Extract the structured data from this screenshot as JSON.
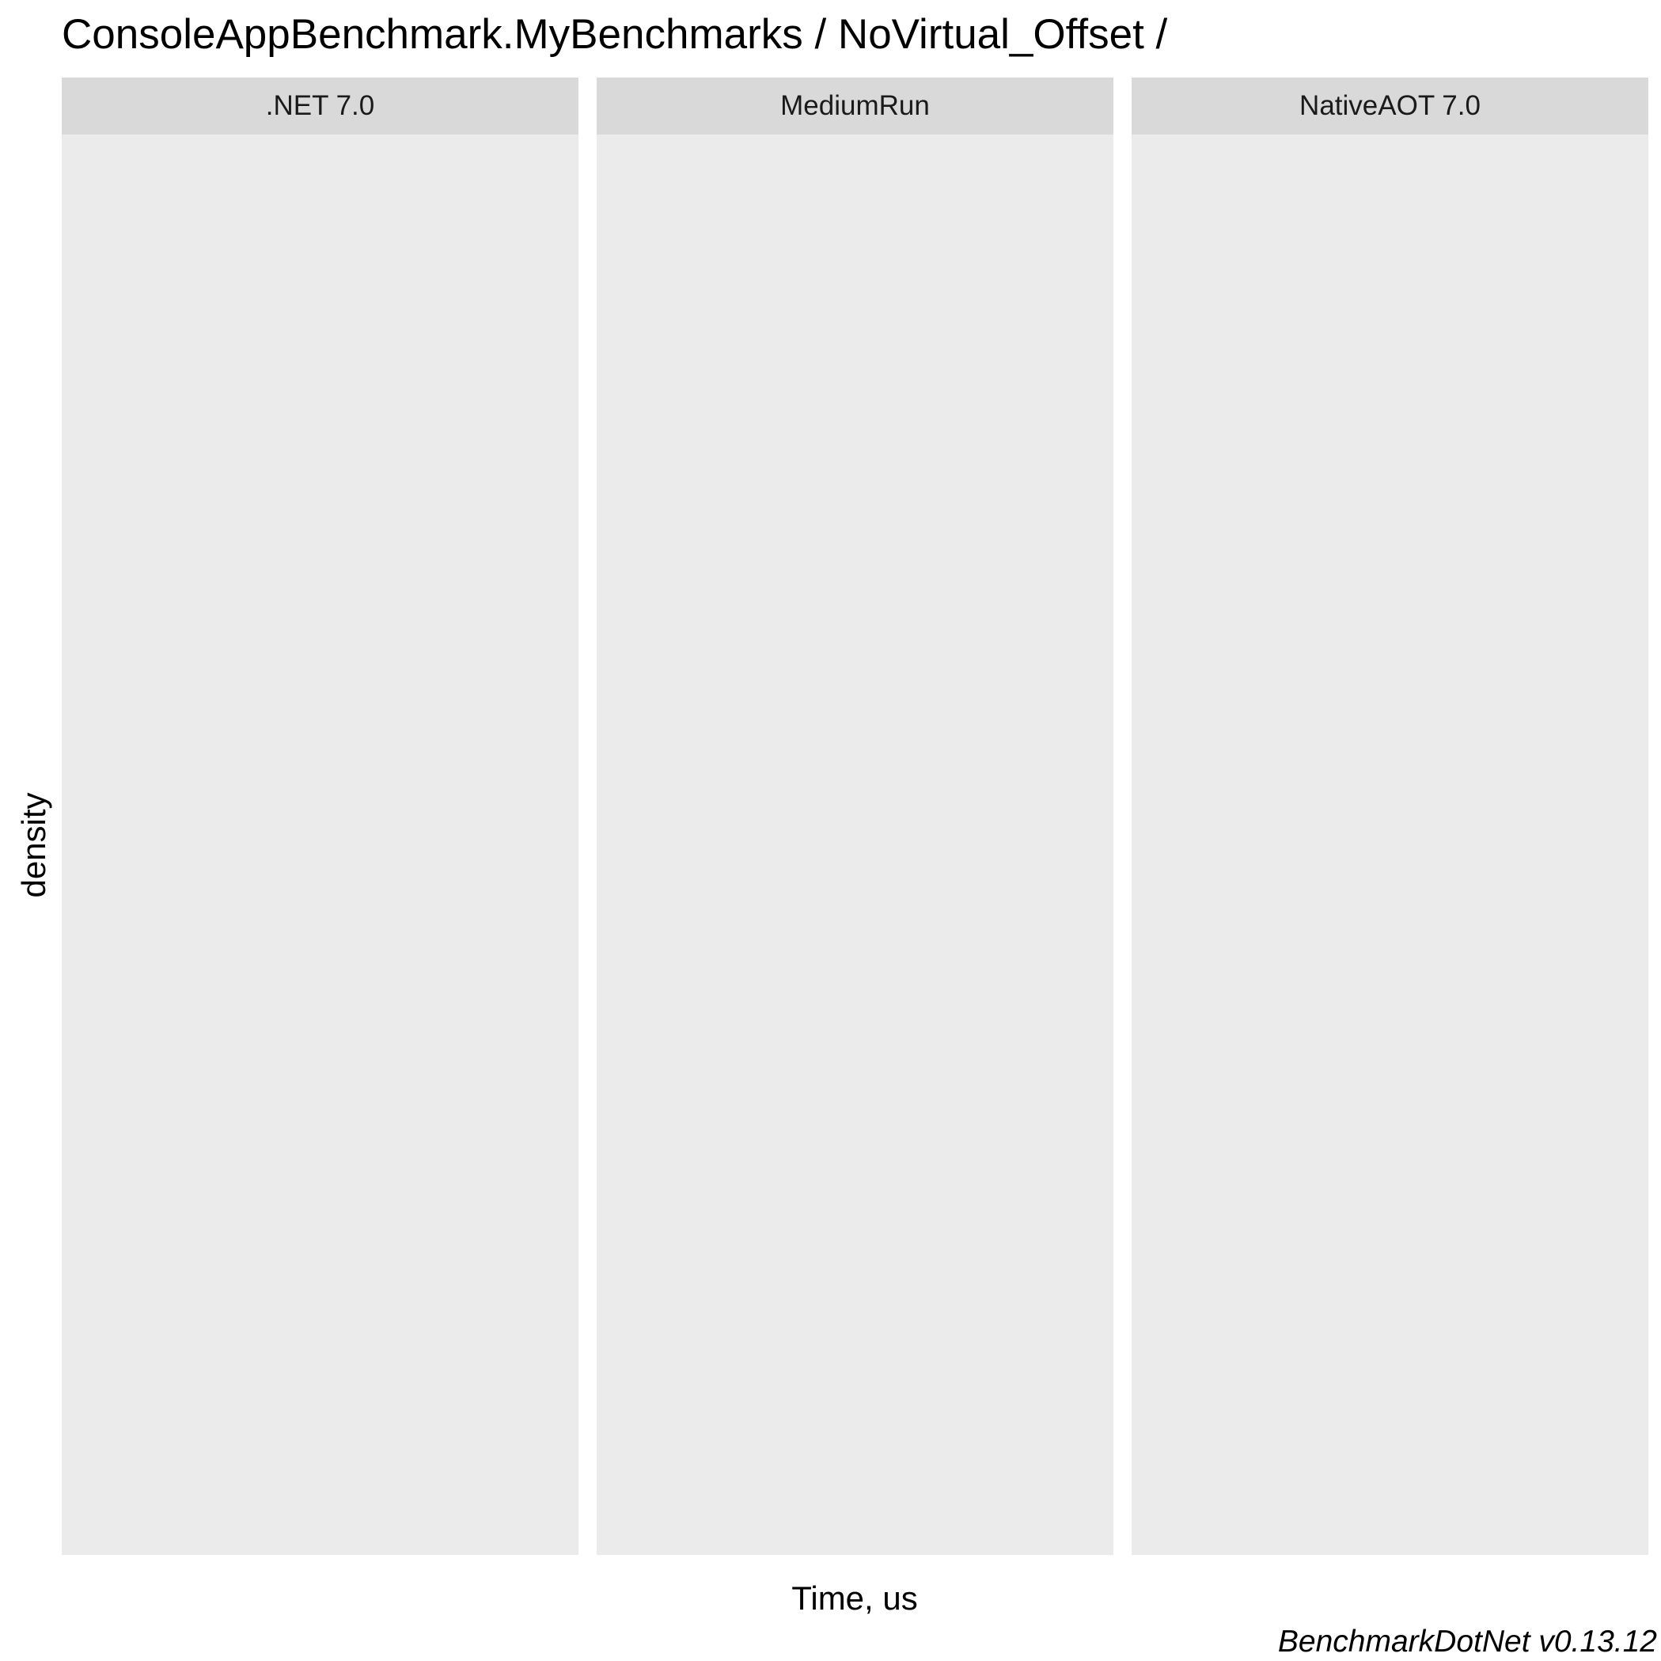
{
  "chart_data": {
    "type": "area",
    "title": "ConsoleAppBenchmark.MyBenchmarks / NoVirtual_Offset /",
    "xlabel": "Time, us",
    "ylabel": "density",
    "grid": false,
    "facets": [
      {
        "label": ".NET 7.0",
        "series": []
      },
      {
        "label": "MediumRun",
        "series": []
      },
      {
        "label": "NativeAOT 7.0",
        "series": []
      }
    ],
    "caption": "BenchmarkDotNet v0.13.12"
  },
  "colors": {
    "strip_background": "#d9d9d9",
    "panel_background": "#ebebeb",
    "page_background": "#ffffff"
  }
}
